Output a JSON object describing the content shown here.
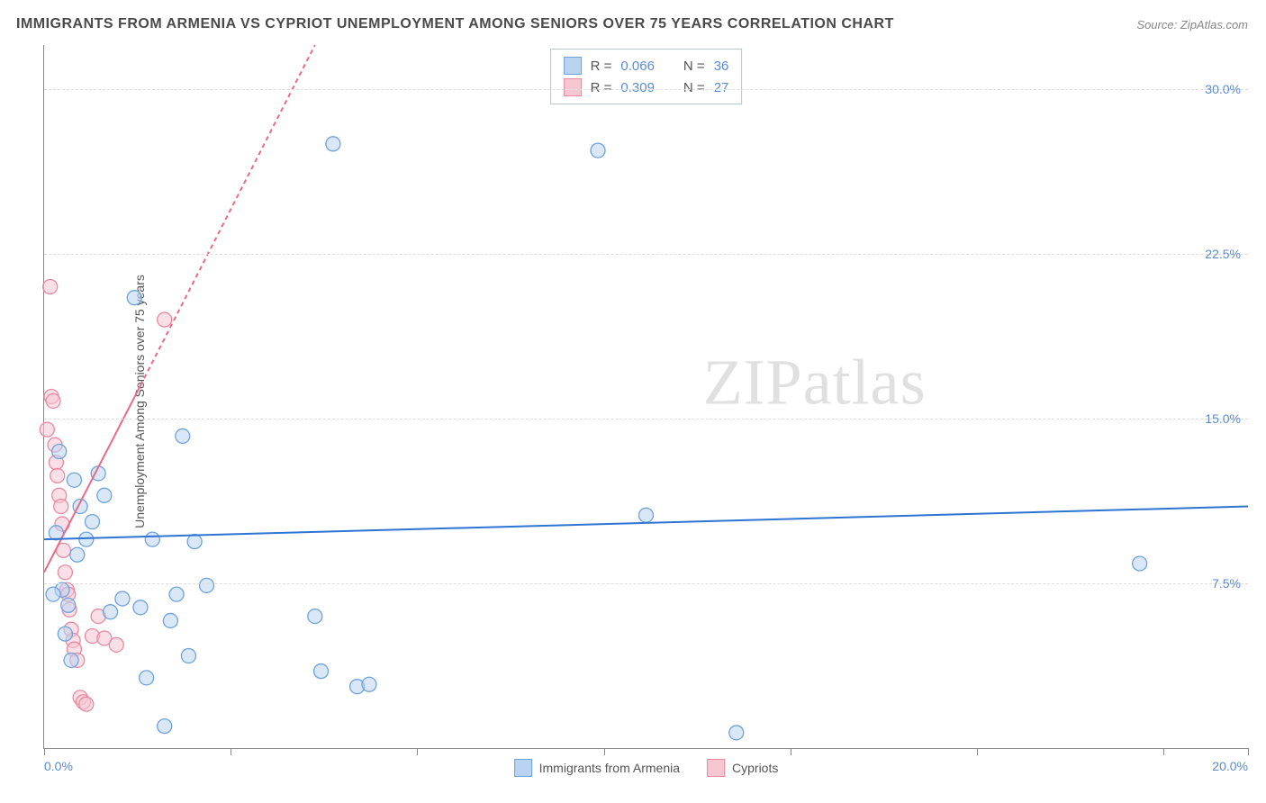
{
  "title": "IMMIGRANTS FROM ARMENIA VS CYPRIOT UNEMPLOYMENT AMONG SENIORS OVER 75 YEARS CORRELATION CHART",
  "source": "Source: ZipAtlas.com",
  "y_axis_label": "Unemployment Among Seniors over 75 years",
  "watermark": "ZIPatlas",
  "chart": {
    "type": "scatter",
    "xlim": [
      0,
      20
    ],
    "ylim": [
      0,
      32
    ],
    "x_tick_min_label": "0.0%",
    "x_tick_max_label": "20.0%",
    "x_tick_positions": [
      0,
      3.1,
      6.2,
      9.3,
      12.4,
      15.5,
      18.6,
      20
    ],
    "y_ticks": [
      7.5,
      15.0,
      22.5,
      30.0
    ],
    "y_tick_labels": [
      "7.5%",
      "15.0%",
      "22.5%",
      "30.0%"
    ],
    "grid_color": "#dddddd",
    "background_color": "#ffffff",
    "marker_radius": 8,
    "marker_stroke_width": 1.3,
    "line_width": 2,
    "dash_pattern": "5,4"
  },
  "series_a": {
    "name": "Immigrants from Armenia",
    "color_fill": "#b9d3f0",
    "color_stroke": "#6fa3de",
    "line_color": "#2e74d2",
    "r_label": "R =",
    "r_value": "0.066",
    "n_label": "N =",
    "n_value": "36",
    "trend": {
      "x1": 0,
      "y1": 9.5,
      "x2": 20,
      "y2": 11.0
    },
    "points": [
      {
        "x": 0.3,
        "y": 7.2
      },
      {
        "x": 0.4,
        "y": 6.5
      },
      {
        "x": 0.5,
        "y": 12.2
      },
      {
        "x": 0.6,
        "y": 11.0
      },
      {
        "x": 0.7,
        "y": 9.5
      },
      {
        "x": 0.8,
        "y": 10.3
      },
      {
        "x": 0.9,
        "y": 12.5
      },
      {
        "x": 1.0,
        "y": 11.5
      },
      {
        "x": 1.1,
        "y": 6.2
      },
      {
        "x": 1.3,
        "y": 6.8
      },
      {
        "x": 1.5,
        "y": 20.5
      },
      {
        "x": 1.7,
        "y": 3.2
      },
      {
        "x": 1.8,
        "y": 9.5
      },
      {
        "x": 2.0,
        "y": 1.0
      },
      {
        "x": 2.1,
        "y": 5.8
      },
      {
        "x": 2.2,
        "y": 7.0
      },
      {
        "x": 2.3,
        "y": 14.2
      },
      {
        "x": 2.4,
        "y": 4.2
      },
      {
        "x": 2.5,
        "y": 9.4
      },
      {
        "x": 2.7,
        "y": 7.4
      },
      {
        "x": 4.5,
        "y": 6.0
      },
      {
        "x": 4.6,
        "y": 3.5
      },
      {
        "x": 4.8,
        "y": 27.5
      },
      {
        "x": 5.2,
        "y": 2.8
      },
      {
        "x": 5.4,
        "y": 2.9
      },
      {
        "x": 9.2,
        "y": 27.2
      },
      {
        "x": 10.0,
        "y": 10.6
      },
      {
        "x": 11.5,
        "y": 0.7
      },
      {
        "x": 18.2,
        "y": 8.4
      },
      {
        "x": 0.35,
        "y": 5.2
      },
      {
        "x": 0.45,
        "y": 4.0
      },
      {
        "x": 0.55,
        "y": 8.8
      },
      {
        "x": 0.15,
        "y": 7.0
      },
      {
        "x": 0.2,
        "y": 9.8
      },
      {
        "x": 0.25,
        "y": 13.5
      },
      {
        "x": 1.6,
        "y": 6.4
      }
    ]
  },
  "series_b": {
    "name": "Cypriots",
    "color_fill": "#f6c6d1",
    "color_stroke": "#e98aa1",
    "line_color": "#e96b8a",
    "r_label": "R =",
    "r_value": "0.309",
    "n_label": "N =",
    "n_value": "27",
    "trend_solid": {
      "x1": 0,
      "y1": 8.0,
      "x2": 1.6,
      "y2": 16.5
    },
    "trend_dash": {
      "x1": 1.6,
      "y1": 16.5,
      "x2": 4.5,
      "y2": 32.0
    },
    "points": [
      {
        "x": 0.1,
        "y": 21.0
      },
      {
        "x": 0.12,
        "y": 16.0
      },
      {
        "x": 0.15,
        "y": 15.8
      },
      {
        "x": 0.18,
        "y": 13.8
      },
      {
        "x": 0.2,
        "y": 13.0
      },
      {
        "x": 0.22,
        "y": 12.4
      },
      {
        "x": 0.25,
        "y": 11.5
      },
      {
        "x": 0.28,
        "y": 11.0
      },
      {
        "x": 0.3,
        "y": 10.2
      },
      {
        "x": 0.32,
        "y": 9.0
      },
      {
        "x": 0.35,
        "y": 8.0
      },
      {
        "x": 0.38,
        "y": 7.2
      },
      {
        "x": 0.4,
        "y": 7.0
      },
      {
        "x": 0.42,
        "y": 6.3
      },
      {
        "x": 0.45,
        "y": 5.4
      },
      {
        "x": 0.48,
        "y": 4.9
      },
      {
        "x": 0.5,
        "y": 4.5
      },
      {
        "x": 0.55,
        "y": 4.0
      },
      {
        "x": 0.6,
        "y": 2.3
      },
      {
        "x": 0.65,
        "y": 2.1
      },
      {
        "x": 0.7,
        "y": 2.0
      },
      {
        "x": 0.8,
        "y": 5.1
      },
      {
        "x": 0.9,
        "y": 6.0
      },
      {
        "x": 1.0,
        "y": 5.0
      },
      {
        "x": 1.2,
        "y": 4.7
      },
      {
        "x": 2.0,
        "y": 19.5
      },
      {
        "x": 0.05,
        "y": 14.5
      }
    ]
  },
  "legend_bottom": {
    "items": [
      {
        "label": "Immigrants from Armenia",
        "fill": "#b9d3f0",
        "stroke": "#6fa3de"
      },
      {
        "label": "Cypriots",
        "fill": "#f6c6d1",
        "stroke": "#e98aa1"
      }
    ]
  }
}
